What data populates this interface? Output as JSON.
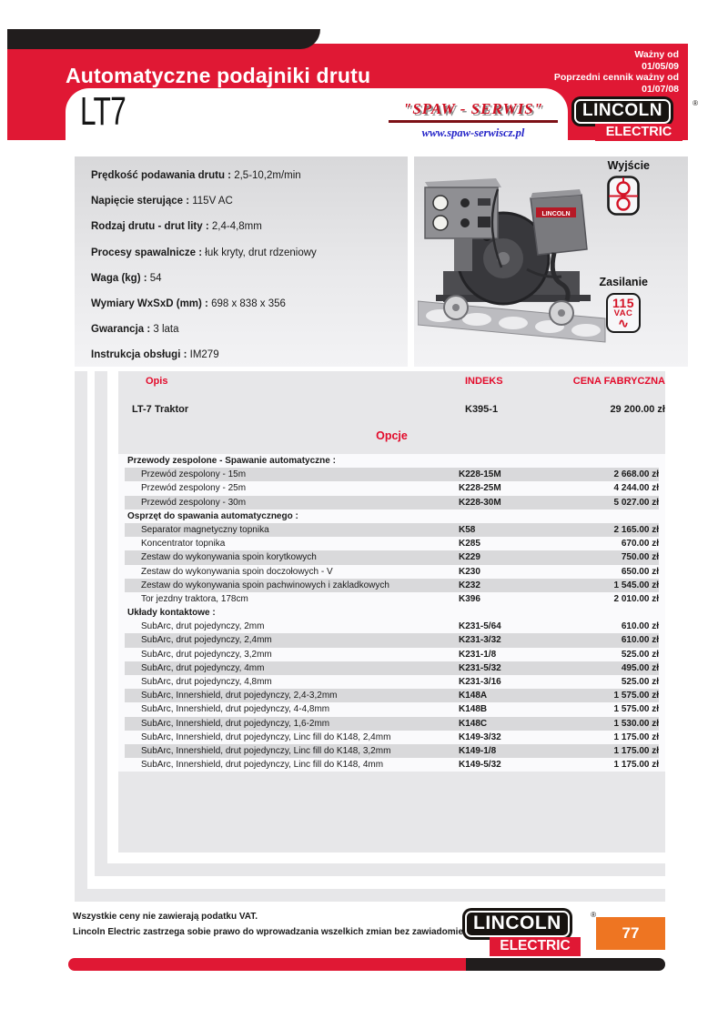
{
  "header": {
    "title": "Automatyczne podajniki drutu",
    "valid_from_label": "Ważny od",
    "valid_from_date": "01/05/09",
    "prev_price_list_label": "Poprzedni cennik ważny od",
    "prev_price_list_date": "01/07/08",
    "model": "LT7"
  },
  "dealer": {
    "name": "\"SPAW - SERWIS\"",
    "website": "www.spaw-serwiscz.pl"
  },
  "brand": {
    "name": "LINCOLN",
    "sub": "ELECTRIC",
    "reg": "®"
  },
  "specs": [
    {
      "label": "Prędkość podawania drutu :",
      "value": "2,5-10,2m/min"
    },
    {
      "label": "Napięcie sterujące :",
      "value": "115V AC"
    },
    {
      "label": "Rodzaj drutu - drut lity :",
      "value": "2,4-4,8mm"
    },
    {
      "label": "Procesy spawalnicze :",
      "value": "łuk kryty, drut rdzeniowy"
    },
    {
      "label": "Waga (kg) :",
      "value": "54"
    },
    {
      "label": "Wymiary WxSxD (mm)  :",
      "value": "698 x 838 x 356"
    },
    {
      "label": "Gwarancja :",
      "value": "3 lata"
    },
    {
      "label": "Instrukcja obsługi :",
      "value": "IM279"
    }
  ],
  "badges": {
    "output_label": "Wyjście",
    "power_label": "Zasilanie",
    "power_value": "115",
    "power_unit": "VAC",
    "power_wave": "∿"
  },
  "photo": {
    "brand_plate": "LINCOLN"
  },
  "table": {
    "col_desc": "Opis",
    "col_index": "INDEKS",
    "col_price": "CENA FABRYCZNA",
    "main_row": {
      "desc": "LT-7 Traktor",
      "index": "K395-1",
      "price": "29 200.00 zł"
    },
    "options_heading": "Opcje",
    "sections": [
      {
        "title": "Przewody zespolone - Spawanie automatyczne :",
        "rows": [
          {
            "desc": "Przewód zespolony - 15m",
            "index": "K228-15M",
            "price": "2 668.00 zł",
            "shaded": true
          },
          {
            "desc": "Przewód zespolony - 25m",
            "index": "K228-25M",
            "price": "4 244.00 zł",
            "shaded": false
          },
          {
            "desc": "Przewód zespolony - 30m",
            "index": "K228-30M",
            "price": "5 027.00 zł",
            "shaded": true
          }
        ]
      },
      {
        "title": "Osprzęt do spawania automatycznego :",
        "rows": [
          {
            "desc": "Separator magnetyczny topnika",
            "index": "K58",
            "price": "2 165.00 zł",
            "shaded": true
          },
          {
            "desc": "Koncentrator topnika",
            "index": "K285",
            "price": "670.00 zł",
            "shaded": false
          },
          {
            "desc": "Zestaw do wykonywania spoin korytkowych",
            "index": "K229",
            "price": "750.00 zł",
            "shaded": true
          },
          {
            "desc": "Zestaw do wykonywania spoin doczołowych - V",
            "index": "K230",
            "price": "650.00 zł",
            "shaded": false
          },
          {
            "desc": "Zestaw do wykonywania spoin pachwinowych i zakladkowych",
            "index": "K232",
            "price": "1 545.00 zł",
            "shaded": true
          },
          {
            "desc": "Tor jezdny traktora, 178cm",
            "index": "K396",
            "price": "2 010.00 zł",
            "shaded": false
          }
        ]
      },
      {
        "title": "Układy kontaktowe :",
        "rows": [
          {
            "desc": "SubArc, drut pojedynczy, 2mm",
            "index": "K231-5/64",
            "price": "610.00 zł",
            "shaded": false
          },
          {
            "desc": "SubArc, drut pojedynczy, 2,4mm",
            "index": "K231-3/32",
            "price": "610.00 zł",
            "shaded": true
          },
          {
            "desc": "SubArc,  drut pojedynczy, 3,2mm",
            "index": "K231-1/8",
            "price": "525.00 zł",
            "shaded": false
          },
          {
            "desc": "SubArc,  drut pojedynczy, 4mm",
            "index": "K231-5/32",
            "price": "495.00 zł",
            "shaded": true
          },
          {
            "desc": "SubArc,  drut pojedynczy, 4,8mm",
            "index": "K231-3/16",
            "price": "525.00 zł",
            "shaded": false
          },
          {
            "desc": "SubArc, Innershield,  drut pojedynczy, 2,4-3,2mm",
            "index": "K148A",
            "price": "1 575.00 zł",
            "shaded": true
          },
          {
            "desc": "SubArc, Innershield,  drut pojedynczy, 4-4,8mm",
            "index": "K148B",
            "price": "1 575.00 zł",
            "shaded": false
          },
          {
            "desc": "SubArc, Innershield,  drut pojedynczy, 1,6-2mm",
            "index": "K148C",
            "price": "1 530.00 zł",
            "shaded": true
          },
          {
            "desc": "SubArc, Innershield,  drut pojedynczy, Linc fill do K148, 2,4mm",
            "index": "K149-3/32",
            "price": "1 175.00 zł",
            "shaded": false
          },
          {
            "desc": "SubArc, Innershield,  drut pojedynczy, Linc fill do K148, 3,2mm",
            "index": "K149-1/8",
            "price": "1 175.00 zł",
            "shaded": true
          },
          {
            "desc": "SubArc, Innershield,  drut pojedynczy, Linc fill do K148, 4mm",
            "index": "K149-5/32",
            "price": "1 175.00 zł",
            "shaded": false
          }
        ]
      }
    ]
  },
  "footer": {
    "vat_note": "Wszystkie ceny nie zawierają podatku VAT.",
    "rights_note": "Lincoln Electric zastrzega sobie prawo do wprowadzania wszelkich zmian bez zawiadomienia.",
    "page_number": "77"
  },
  "colors": {
    "banner_red": "#e01834",
    "table_heading_red": "#e30b2b",
    "page_box_orange": "#ee7522",
    "bar_black": "#211d1d",
    "panel_gray": "#e7e7e9",
    "stripe_gray": "#d9d9db"
  }
}
